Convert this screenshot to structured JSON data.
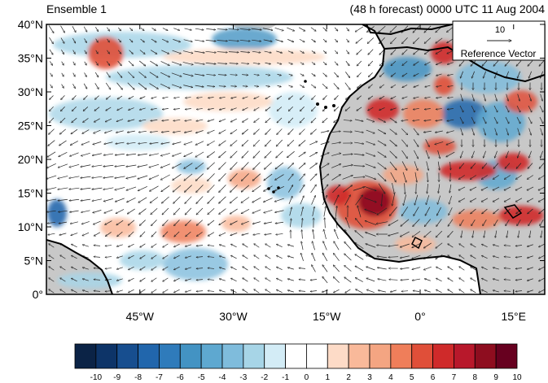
{
  "header": {
    "left_title": "Ensemble 1",
    "right_title": "(48 h forecast) 0000 UTC 11 Aug 2004"
  },
  "map": {
    "lat_range": [
      0,
      40
    ],
    "lon_range": [
      -60,
      20
    ],
    "y_ticks": [
      {
        "value": 40,
        "label": "40°N"
      },
      {
        "value": 35,
        "label": "35°N"
      },
      {
        "value": 30,
        "label": "30°N"
      },
      {
        "value": 25,
        "label": "25°N"
      },
      {
        "value": 20,
        "label": "20°N"
      },
      {
        "value": 15,
        "label": "15°N"
      },
      {
        "value": 10,
        "label": "10°N"
      },
      {
        "value": 5,
        "label": "5°N"
      },
      {
        "value": 0,
        "label": "0°"
      }
    ],
    "x_ticks": [
      {
        "value": -45,
        "label": "45°W"
      },
      {
        "value": -30,
        "label": "30°W"
      },
      {
        "value": -15,
        "label": "15°W"
      },
      {
        "value": 0,
        "label": "0°"
      },
      {
        "value": 15,
        "label": "15°E"
      }
    ],
    "land_color": "#c8c8c8"
  },
  "reference_vector": {
    "magnitude": "10",
    "label": "Reference Vector"
  },
  "colorbar": {
    "labels": [
      "-10",
      "-9",
      "-8",
      "-7",
      "-6",
      "-5",
      "-4",
      "-3",
      "-2",
      "-1",
      "0",
      "1",
      "2",
      "3",
      "4",
      "5",
      "6",
      "7",
      "8",
      "9",
      "10"
    ],
    "colors": [
      "#0b2346",
      "#0d3468",
      "#174e8f",
      "#2166ac",
      "#2f7bbb",
      "#4393c3",
      "#5ea8d0",
      "#7fbcdc",
      "#a7d5e7",
      "#d3ecf6",
      "#ffffff",
      "#ffffff",
      "#fddbc7",
      "#f9b99a",
      "#f4a582",
      "#ef7e5a",
      "#e04f39",
      "#cf2a2a",
      "#b8182b",
      "#8e0d1f",
      "#67001f"
    ]
  }
}
